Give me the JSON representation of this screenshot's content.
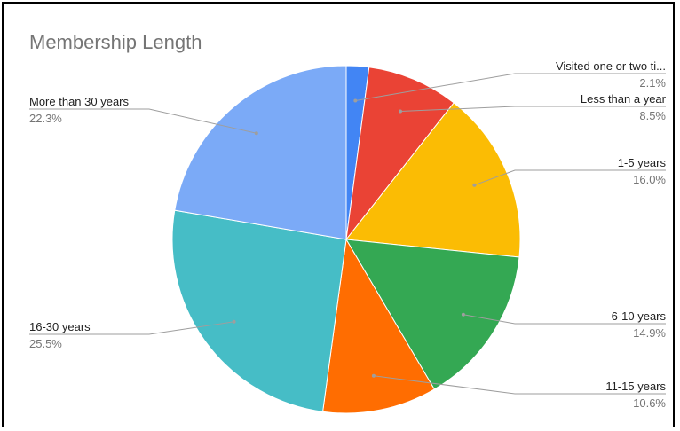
{
  "chart_data": {
    "type": "pie",
    "title": "Membership Length",
    "slices": [
      {
        "label": "Visited one or two ti...",
        "value": 2.1,
        "display": "2.1%",
        "color": "#4285f4"
      },
      {
        "label": "Less than a year",
        "value": 8.5,
        "display": "8.5%",
        "color": "#ea4335"
      },
      {
        "label": "1-5 years",
        "value": 16.0,
        "display": "16.0%",
        "color": "#fbbc04"
      },
      {
        "label": "6-10 years",
        "value": 14.9,
        "display": "14.9%",
        "color": "#34a853"
      },
      {
        "label": "11-15 years",
        "value": 10.6,
        "display": "10.6%",
        "color": "#ff6d01"
      },
      {
        "label": "16-30 years",
        "value": 25.5,
        "display": "25.5%",
        "color": "#46bdc6"
      },
      {
        "label": "More than 30 years",
        "value": 22.3,
        "display": "22.3%",
        "color": "#7baaf7"
      }
    ],
    "legend": "none",
    "label_style": "callout"
  }
}
